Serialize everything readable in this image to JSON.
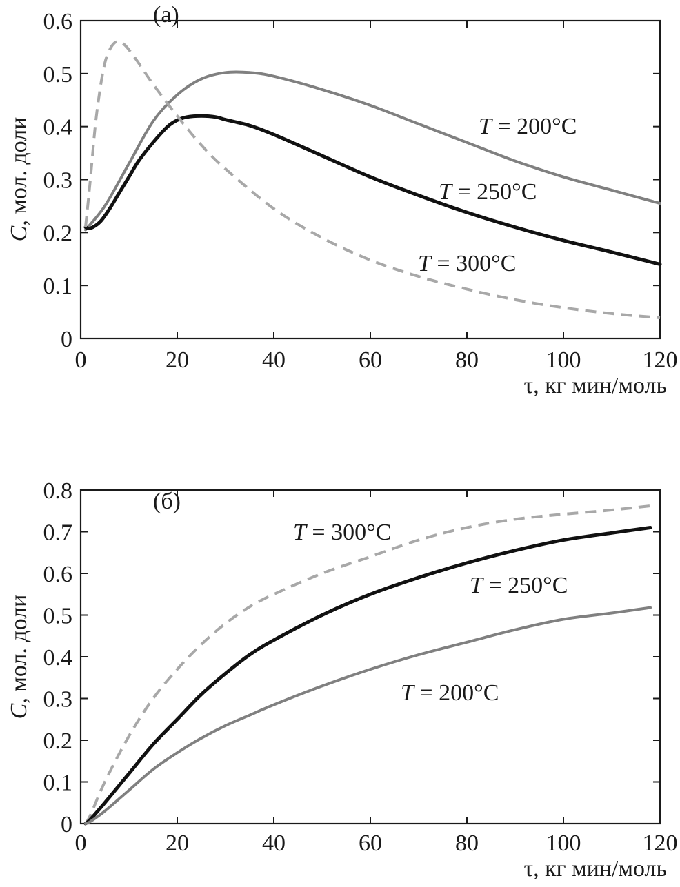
{
  "chart_data": [
    {
      "type": "line",
      "panel_label": "(а)",
      "xlabel": "τ, кг мин/моль",
      "ylabel_italic": "C",
      "ylabel_rest": ", мол. доли",
      "xlim": [
        0,
        120
      ],
      "ylim": [
        0,
        0.6
      ],
      "xticks": [
        "0",
        "20",
        "40",
        "60",
        "80",
        "100",
        "120"
      ],
      "yticks": [
        "0",
        "0.1",
        "0.2",
        "0.3",
        "0.4",
        "0.5",
        "0.6"
      ],
      "series": [
        {
          "name": "T = 200°C",
          "label_italic": "T",
          "label_rest": " = 200°C",
          "color": "#808080",
          "dash": "solid",
          "x": [
            1,
            5,
            10,
            15,
            20,
            25,
            30,
            35,
            40,
            50,
            60,
            70,
            80,
            90,
            100,
            110,
            120
          ],
          "y": [
            0.205,
            0.25,
            0.33,
            0.41,
            0.46,
            0.49,
            0.502,
            0.502,
            0.495,
            0.47,
            0.44,
            0.405,
            0.37,
            0.335,
            0.305,
            0.28,
            0.255
          ]
        },
        {
          "name": "T = 250°C",
          "label_italic": "T",
          "label_rest": " = 250°C",
          "color": "#111111",
          "dash": "solid",
          "x": [
            1,
            2,
            4,
            6,
            8,
            10,
            12,
            15,
            18,
            20,
            22,
            25,
            28,
            30,
            35,
            40,
            50,
            60,
            70,
            80,
            90,
            100,
            110,
            120
          ],
          "y": [
            0.21,
            0.208,
            0.22,
            0.245,
            0.275,
            0.305,
            0.335,
            0.37,
            0.4,
            0.412,
            0.418,
            0.42,
            0.418,
            0.413,
            0.402,
            0.385,
            0.345,
            0.305,
            0.27,
            0.238,
            0.21,
            0.185,
            0.163,
            0.14
          ]
        },
        {
          "name": "T = 300°C",
          "label_italic": "T",
          "label_rest": " = 300°C",
          "color": "#a8a8a8",
          "dash": "dashed",
          "x": [
            1,
            2,
            3,
            4,
            5,
            6,
            7,
            8,
            9,
            10,
            12,
            15,
            20,
            25,
            30,
            40,
            50,
            60,
            70,
            80,
            90,
            100,
            110,
            120
          ],
          "y": [
            0.21,
            0.3,
            0.4,
            0.47,
            0.52,
            0.545,
            0.558,
            0.56,
            0.555,
            0.545,
            0.52,
            0.48,
            0.42,
            0.365,
            0.32,
            0.245,
            0.19,
            0.148,
            0.117,
            0.093,
            0.073,
            0.058,
            0.047,
            0.039
          ]
        }
      ]
    },
    {
      "type": "line",
      "panel_label": "(б)",
      "xlabel": "τ, кг мин/моль",
      "ylabel_italic": "C",
      "ylabel_rest": ", мол. доли",
      "xlim": [
        0,
        120
      ],
      "ylim": [
        0,
        0.8
      ],
      "xticks": [
        "0",
        "20",
        "40",
        "60",
        "80",
        "100",
        "120"
      ],
      "yticks": [
        "0",
        "0.1",
        "0.2",
        "0.3",
        "0.4",
        "0.5",
        "0.6",
        "0.7",
        "0.8"
      ],
      "series": [
        {
          "name": "T = 300°C",
          "label_italic": "T",
          "label_rest": " = 300°C",
          "color": "#a8a8a8",
          "dash": "dashed",
          "x": [
            1,
            2,
            5,
            10,
            15,
            20,
            25,
            30,
            35,
            40,
            50,
            60,
            70,
            80,
            90,
            100,
            110,
            118
          ],
          "y": [
            0,
            0.02,
            0.1,
            0.21,
            0.3,
            0.37,
            0.43,
            0.48,
            0.52,
            0.55,
            0.6,
            0.64,
            0.68,
            0.71,
            0.73,
            0.742,
            0.752,
            0.762
          ]
        },
        {
          "name": "T = 250°C",
          "label_italic": "T",
          "label_rest": " = 250°C",
          "color": "#111111",
          "dash": "solid",
          "x": [
            1,
            2,
            5,
            10,
            15,
            20,
            25,
            30,
            35,
            40,
            50,
            60,
            70,
            80,
            90,
            100,
            110,
            118
          ],
          "y": [
            0,
            0.01,
            0.05,
            0.12,
            0.19,
            0.25,
            0.31,
            0.36,
            0.405,
            0.44,
            0.5,
            0.55,
            0.59,
            0.625,
            0.655,
            0.68,
            0.697,
            0.71
          ]
        },
        {
          "name": "T = 200°C",
          "label_italic": "T",
          "label_rest": " = 200°C",
          "color": "#808080",
          "dash": "solid",
          "x": [
            1,
            2,
            5,
            10,
            15,
            20,
            25,
            30,
            35,
            40,
            50,
            60,
            70,
            80,
            90,
            100,
            110,
            118
          ],
          "y": [
            0,
            0.005,
            0.03,
            0.08,
            0.13,
            0.17,
            0.205,
            0.235,
            0.26,
            0.285,
            0.33,
            0.37,
            0.405,
            0.435,
            0.465,
            0.49,
            0.505,
            0.518
          ]
        }
      ]
    }
  ]
}
